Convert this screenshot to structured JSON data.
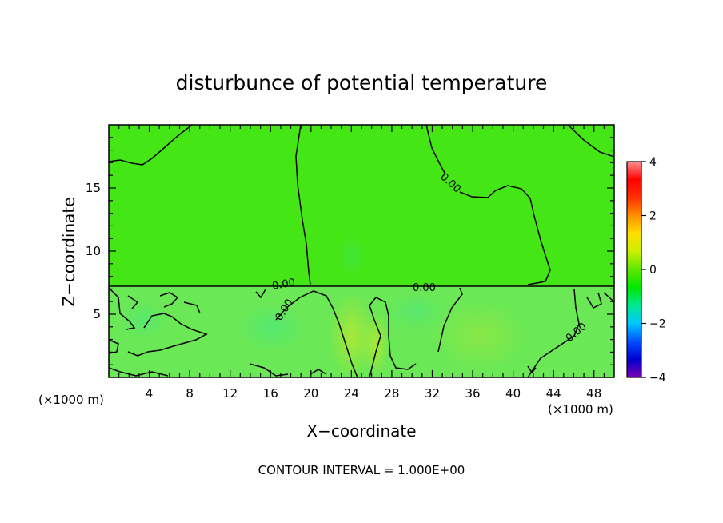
{
  "chart_data": {
    "type": "heatmap",
    "title": "disturbunce of potential temperature",
    "xlabel": "X−coordinate",
    "ylabel": "Z−coordinate",
    "x_unit_left": "(×1000 m)",
    "x_unit_right": "(×1000 m)",
    "footer": "CONTOUR INTERVAL = 1.000E+00",
    "xlim": [
      0,
      50
    ],
    "ylim": [
      0,
      20
    ],
    "x_ticks": [
      "4",
      "8",
      "12",
      "16",
      "20",
      "24",
      "28",
      "32",
      "36",
      "40",
      "44",
      "48"
    ],
    "y_ticks": [
      "5",
      "10",
      "15"
    ],
    "colorbar": {
      "range": [
        -4,
        4
      ],
      "ticks": [
        "4",
        "2",
        "0",
        "−2",
        "−4"
      ],
      "colors": [
        "#7a00b0",
        "#0000d0",
        "#0050ff",
        "#00c8ff",
        "#00e890",
        "#00e800",
        "#60e800",
        "#c8f000",
        "#ffe000",
        "#ff9000",
        "#ff3000",
        "#ff0000",
        "#ff9090"
      ]
    },
    "contour_labels": [
      "0.00",
      "0.00",
      "0.00",
      "0.00",
      "0.00"
    ],
    "regions": [
      {
        "name": "upper layer (z > 7.2)",
        "value": 0.3,
        "color": "#44e615"
      },
      {
        "name": "lower layer (z < 7.2)",
        "value": 0.05,
        "color": "#6ae855"
      }
    ]
  }
}
